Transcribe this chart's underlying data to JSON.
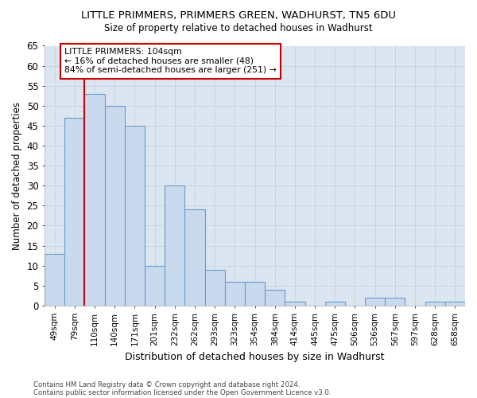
{
  "title_line1": "LITTLE PRIMMERS, PRIMMERS GREEN, WADHURST, TN5 6DU",
  "title_line2": "Size of property relative to detached houses in Wadhurst",
  "xlabel": "Distribution of detached houses by size in Wadhurst",
  "ylabel": "Number of detached properties",
  "categories": [
    "49sqm",
    "79sqm",
    "110sqm",
    "140sqm",
    "171sqm",
    "201sqm",
    "232sqm",
    "262sqm",
    "293sqm",
    "323sqm",
    "354sqm",
    "384sqm",
    "414sqm",
    "445sqm",
    "475sqm",
    "506sqm",
    "536sqm",
    "567sqm",
    "597sqm",
    "628sqm",
    "658sqm"
  ],
  "values": [
    13,
    47,
    53,
    50,
    45,
    10,
    30,
    24,
    9,
    6,
    6,
    4,
    1,
    0,
    1,
    0,
    2,
    2,
    0,
    1,
    1
  ],
  "bar_color": "#c9d9ee",
  "bar_edge_color": "#6a9bcc",
  "ylim": [
    0,
    65
  ],
  "yticks": [
    0,
    5,
    10,
    15,
    20,
    25,
    30,
    35,
    40,
    45,
    50,
    55,
    60,
    65
  ],
  "annotation_text": "LITTLE PRIMMERS: 104sqm\n← 16% of detached houses are smaller (48)\n84% of semi-detached houses are larger (251) →",
  "annotation_box_color": "#ffffff",
  "annotation_box_edge": "#cc0000",
  "marker_color": "#cc0000",
  "footer_line1": "Contains HM Land Registry data © Crown copyright and database right 2024.",
  "footer_line2": "Contains public sector information licensed under the Open Government Licence v3.0.",
  "grid_color": "#c8d4e3",
  "background_color": "#dce6f1",
  "fig_background": "#ffffff"
}
